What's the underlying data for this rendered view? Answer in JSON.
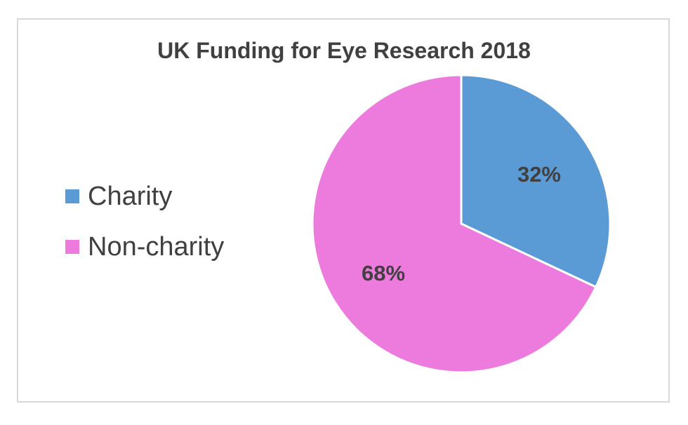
{
  "chart_data": {
    "type": "pie",
    "title": "UK Funding for Eye Research 2018",
    "categories": [
      "Charity",
      "Non-charity"
    ],
    "values": [
      32,
      68
    ],
    "data_labels": [
      "32%",
      "68%"
    ],
    "colors": [
      "#5b9bd5",
      "#ed7bde"
    ],
    "legend_position": "left",
    "start_angle": "12 o'clock",
    "direction": "clockwise"
  }
}
